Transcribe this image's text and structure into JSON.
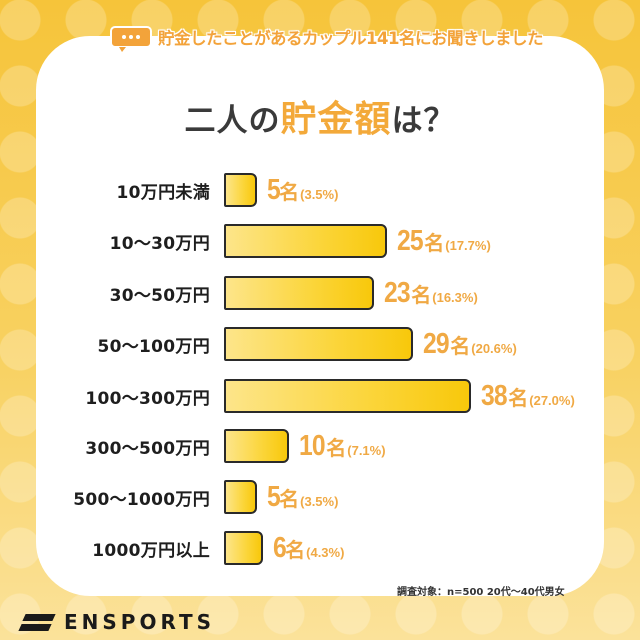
{
  "header": {
    "banner_icon": "speech-bubble-icon",
    "banner_text": "貯金したことがあるカップル141名にお聞きしました",
    "title_prefix": "二人の",
    "title_accent": "貯金額",
    "title_suffix": "は？"
  },
  "rows": [
    {
      "label": "10万円未満",
      "count": "5",
      "unit": "名",
      "pct": "(3.5%)"
    },
    {
      "label": "10〜30万円",
      "count": "25",
      "unit": "名",
      "pct": "(17.7%)"
    },
    {
      "label": "30〜50万円",
      "count": "23",
      "unit": "名",
      "pct": "(16.3%)"
    },
    {
      "label": "50〜100万円",
      "count": "29",
      "unit": "名",
      "pct": "(20.6%)"
    },
    {
      "label": "100〜300万円",
      "count": "38",
      "unit": "名",
      "pct": "(27.0%)"
    },
    {
      "label": "300〜500万円",
      "count": "10",
      "unit": "名",
      "pct": "(7.1%)"
    },
    {
      "label": "500〜1000万円",
      "count": "5",
      "unit": "名",
      "pct": "(3.5%)"
    },
    {
      "label": "1000万円以上",
      "count": "6",
      "unit": "名",
      "pct": "(4.3%)"
    }
  ],
  "footer": {
    "note": "調査対象：n=500 20代〜40代男女",
    "logo_text": "ENSPORTS",
    "logo_icon": "ensports-logo-icon"
  },
  "colors": {
    "accent": "#f3a33a",
    "bar_start": "#fde58a",
    "bar_end": "#f8c80b",
    "background": "#f6c43a"
  },
  "chart_data": {
    "type": "bar",
    "orientation": "horizontal",
    "title": "二人の貯金額は？",
    "subtitle": "貯金したことがあるカップル141名にお聞きしました",
    "categories": [
      "10万円未満",
      "10〜30万円",
      "30〜50万円",
      "50〜100万円",
      "100〜300万円",
      "300〜500万円",
      "500〜1000万円",
      "1000万円以上"
    ],
    "values": [
      5,
      25,
      23,
      29,
      38,
      10,
      5,
      6
    ],
    "percentages": [
      3.5,
      17.7,
      16.3,
      20.6,
      27.0,
      7.1,
      3.5,
      4.3
    ],
    "value_unit": "名",
    "xlabel": "",
    "ylabel": "",
    "grid": false,
    "legend": null,
    "annotation": "調査対象：n=500 20代〜40代男女"
  }
}
